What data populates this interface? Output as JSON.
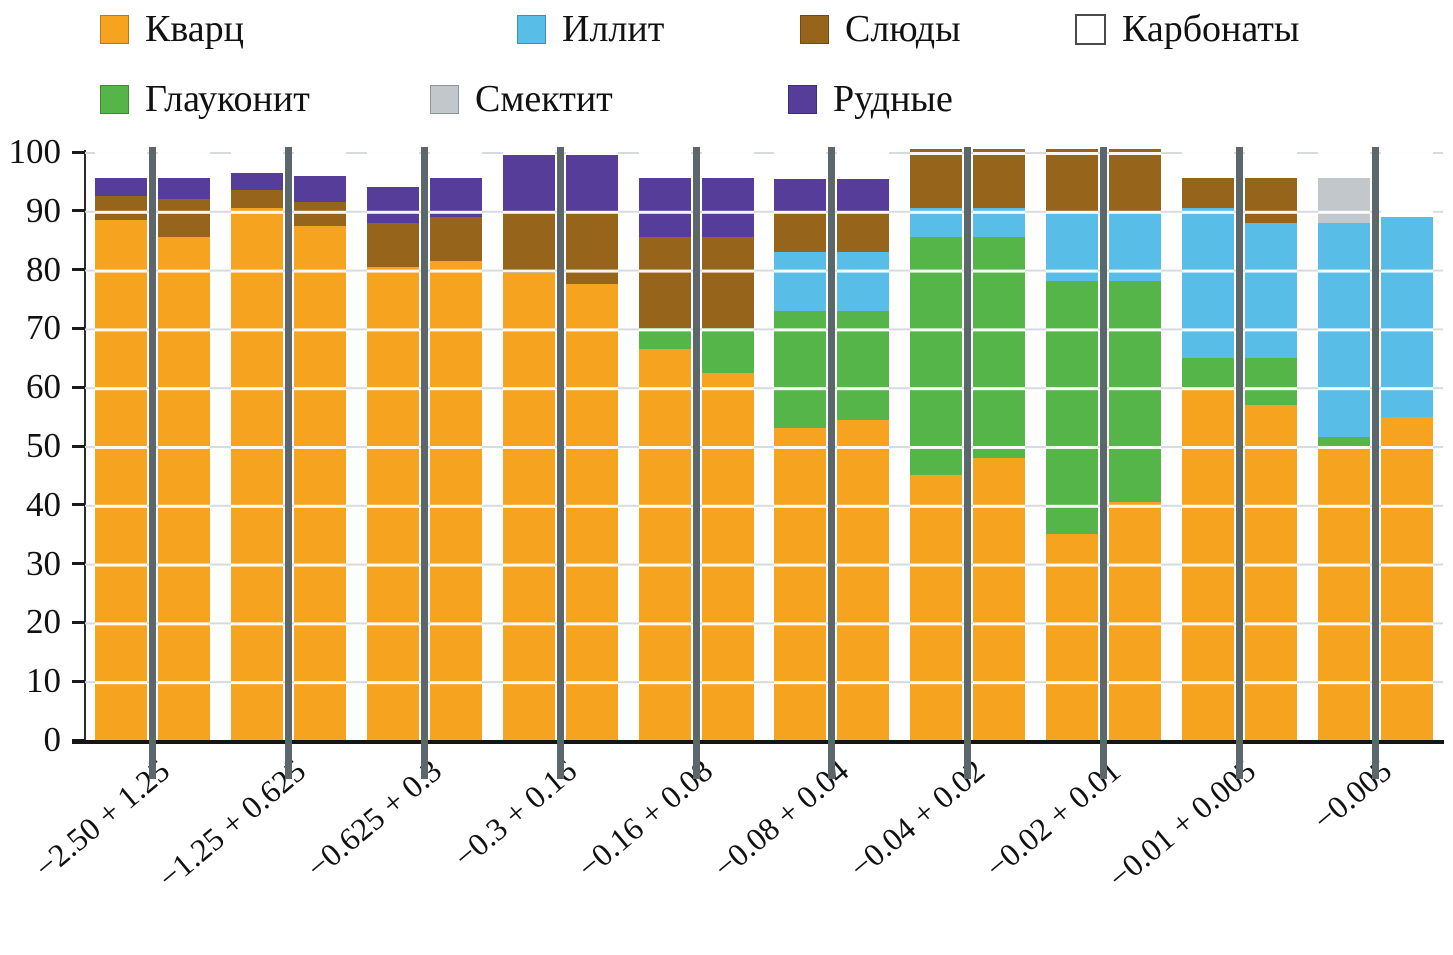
{
  "legend": {
    "items": [
      {
        "key": "quartz",
        "label": "Кварц",
        "color": "#F6A320"
      },
      {
        "key": "illite",
        "label": "Иллит",
        "color": "#58BEE8"
      },
      {
        "key": "mica",
        "label": "Слюды",
        "color": "#96641B"
      },
      {
        "key": "carbonates",
        "label": "Карбонаты",
        "color": "#FFFFFF",
        "border": "#4a4a4a"
      },
      {
        "key": "glauconite",
        "label": "Глауконит",
        "color": "#56B549"
      },
      {
        "key": "smectite",
        "label": "Смектит",
        "color": "#C2C7CB"
      },
      {
        "key": "ore",
        "label": "Рудные",
        "color": "#553D99"
      }
    ]
  },
  "chart_data": {
    "type": "bar",
    "stacked": true,
    "title": "",
    "xlabel": "",
    "ylabel": "",
    "ylim": [
      0,
      100
    ],
    "yticks": [
      0,
      10,
      20,
      30,
      40,
      50,
      60,
      70,
      80,
      90,
      100
    ],
    "grid": true,
    "legend_position": "top",
    "bars_per_category": 2,
    "stack_order": [
      "quartz",
      "glauconite",
      "illite",
      "mica",
      "carbonates",
      "smectite",
      "ore"
    ],
    "categories": [
      "−2.50 + 1.25",
      "−1.25 + 0.625",
      "−0.625 + 0.3",
      "−0.3 + 0.16",
      "−0.16 + 0.08",
      "−0.08 + 0.04",
      "−0.04 + 0.02",
      "−0.02 + 0.01",
      "−0.01 + 0.005",
      "−0.005"
    ],
    "groups": [
      {
        "category": "−2.50 + 1.25",
        "left": {
          "quartz": 88.5,
          "mica": 4,
          "ore": 3
        },
        "right": {
          "quartz": 85.5,
          "mica": 6.5,
          "ore": 3.5
        }
      },
      {
        "category": "−1.25 + 0.625",
        "left": {
          "quartz": 90.5,
          "mica": 3,
          "ore": 3
        },
        "right": {
          "quartz": 87.5,
          "mica": 4,
          "ore": 4.5
        }
      },
      {
        "category": "−0.625 + 0.3",
        "left": {
          "quartz": 80.5,
          "mica": 7.5,
          "ore": 6
        },
        "right": {
          "quartz": 81.5,
          "mica": 7.5,
          "ore": 6.5
        }
      },
      {
        "category": "−0.3 + 0.16",
        "left": {
          "quartz": 79.5,
          "mica": 10.5,
          "ore": 9.5
        },
        "right": {
          "quartz": 77.5,
          "mica": 12.5,
          "ore": 9.5
        }
      },
      {
        "category": "−0.16 + 0.08",
        "left": {
          "quartz": 66.5,
          "glauconite": 3.5,
          "mica": 15.5,
          "ore": 10
        },
        "right": {
          "quartz": 62.5,
          "glauconite": 7.5,
          "mica": 15.5,
          "ore": 10
        }
      },
      {
        "category": "−0.08 + 0.04",
        "left": {
          "quartz": 53,
          "glauconite": 20,
          "illite": 10,
          "mica": 7,
          "ore": 5.5
        },
        "right": {
          "quartz": 54.5,
          "glauconite": 18.5,
          "illite": 10,
          "mica": 7,
          "ore": 5.5
        }
      },
      {
        "category": "−0.04 + 0.02",
        "left": {
          "quartz": 45,
          "glauconite": 40.5,
          "illite": 5,
          "mica": 10
        },
        "right": {
          "quartz": 48,
          "glauconite": 37.5,
          "illite": 5,
          "mica": 10
        }
      },
      {
        "category": "−0.02 + 0.01",
        "left": {
          "quartz": 35,
          "glauconite": 43,
          "illite": 12,
          "mica": 10.5
        },
        "right": {
          "quartz": 40.5,
          "glauconite": 37.5,
          "illite": 12,
          "mica": 10.5
        }
      },
      {
        "category": "−0.01 + 0.005",
        "left": {
          "quartz": 60,
          "glauconite": 5,
          "illite": 25.5,
          "mica": 5
        },
        "right": {
          "quartz": 57,
          "glauconite": 8,
          "illite": 23,
          "mica": 7.5
        }
      },
      {
        "category": "−0.005",
        "left": {
          "quartz": 50,
          "glauconite": 1.5,
          "illite": 36.5,
          "smectite": 7.5
        },
        "right": {
          "quartz": 55,
          "illite": 34
        }
      }
    ]
  }
}
